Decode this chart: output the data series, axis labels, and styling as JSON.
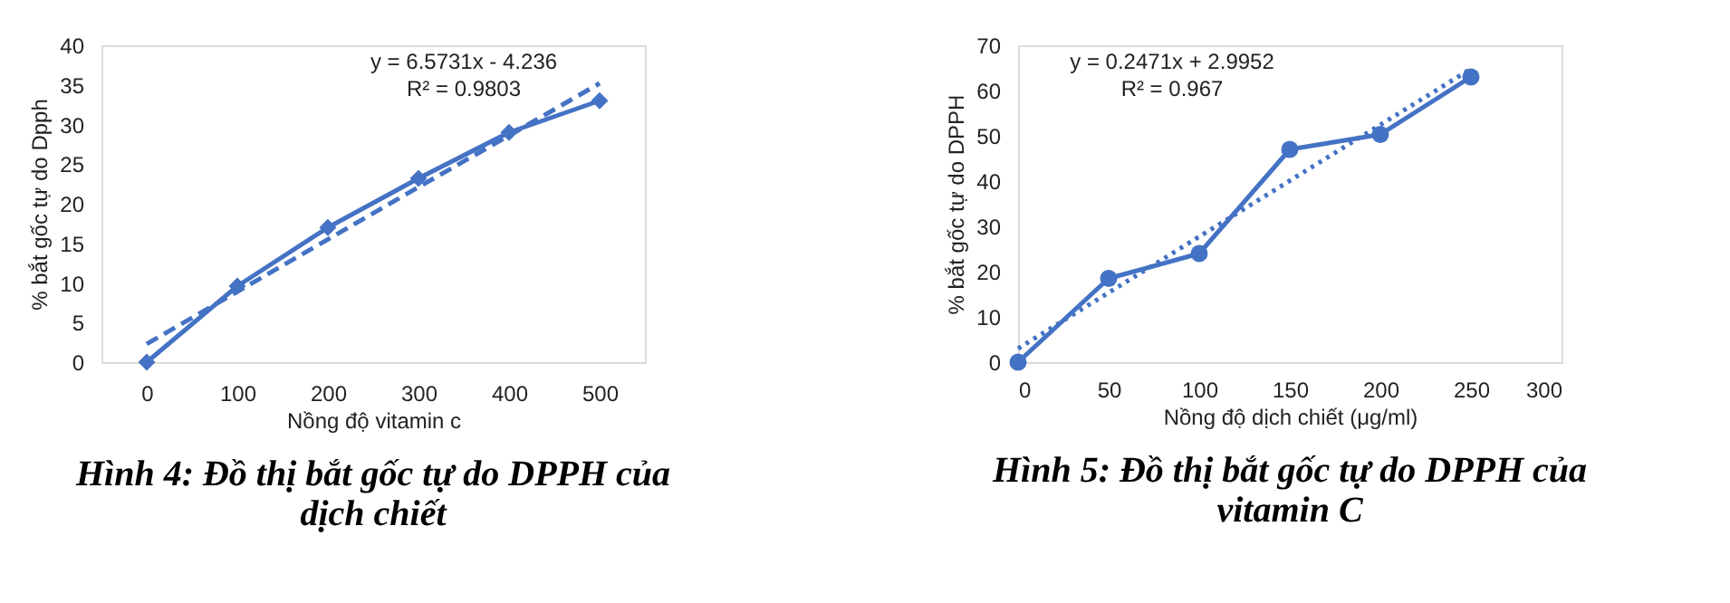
{
  "chart_data": [
    {
      "type": "line",
      "xlabel": "Nồng độ vitamin c",
      "ylabel": "% bắt gốc tự do Dpph",
      "categories": [
        "0",
        "100",
        "200",
        "300",
        "400",
        "500"
      ],
      "ylim": [
        0,
        40
      ],
      "yticks": [
        0,
        5,
        10,
        15,
        20,
        25,
        30,
        35,
        40
      ],
      "grid": false,
      "series": [
        {
          "color": "#4472c4",
          "values": [
            0,
            9.6,
            17,
            23.2,
            29,
            33
          ],
          "marker": "diamond",
          "line_style": "solid"
        },
        {
          "color": "#4472c4",
          "values": [
            2.3,
            8.9,
            15.5,
            22.1,
            28.6,
            35.2
          ],
          "marker": "none",
          "line_style": "dashed"
        }
      ],
      "annotations": [
        "y = 6.5731x - 4.236",
        "R² = 0.9803",
        "Hình 4: Đồ thị bắt gốc tự do DPPH của dịch chiết"
      ]
    },
    {
      "type": "line",
      "xlabel": "Nồng độ dịch chiết (μg/ml)",
      "ylabel": "% bắt gốc tự do DPPH",
      "x": [
        0,
        50,
        100,
        150,
        200,
        250
      ],
      "xlim": [
        0,
        300
      ],
      "xticks": [
        0,
        50,
        100,
        150,
        200,
        250,
        300
      ],
      "ylim": [
        0,
        70
      ],
      "yticks": [
        0,
        10,
        20,
        30,
        40,
        50,
        60,
        70
      ],
      "grid": false,
      "series": [
        {
          "color": "#4472c4",
          "values": [
            0,
            18.5,
            24,
            47,
            50.3,
            63
          ],
          "marker": "circle",
          "line_style": "solid"
        },
        {
          "color": "#4472c4",
          "x": [
            0,
            250
          ],
          "values": [
            3.0,
            64.8
          ],
          "marker": "none",
          "line_style": "dotted"
        }
      ],
      "annotations": [
        "y = 0.2471x + 2.9952",
        "R² = 0.967",
        "Hình 5: Đồ thị bắt gốc tự do DPPH của vitamin C"
      ]
    }
  ]
}
